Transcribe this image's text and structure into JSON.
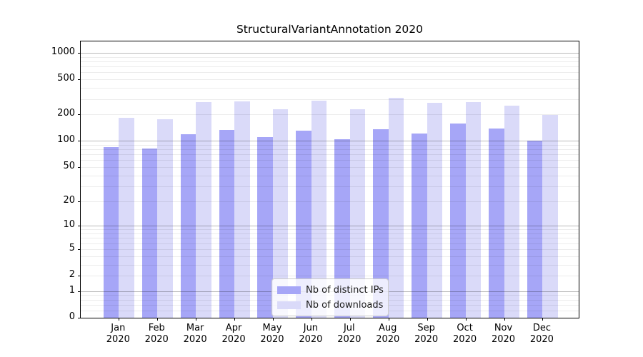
{
  "figure": {
    "title": "StructuralVariantAnnotation 2020"
  },
  "chart_data": {
    "type": "bar",
    "title": "StructuralVariantAnnotation 2020",
    "year_label": "2020",
    "categories": [
      "Jan",
      "Feb",
      "Mar",
      "Apr",
      "May",
      "Jun",
      "Jul",
      "Aug",
      "Sep",
      "Oct",
      "Nov",
      "Dec"
    ],
    "series": [
      {
        "name": "Nb of distinct IPs",
        "color": "#a6a6f7",
        "values": [
          84,
          81,
          119,
          134,
          110,
          130,
          104,
          136,
          122,
          158,
          137,
          101
        ]
      },
      {
        "name": "Nb of downloads",
        "color": "#dadaf9",
        "values": [
          183,
          176,
          274,
          281,
          228,
          287,
          228,
          307,
          271,
          277,
          250,
          197
        ]
      }
    ],
    "y_axis": {
      "scale": "log1p",
      "tick_labels": [
        "0",
        "1",
        "2",
        "5",
        "10",
        "20",
        "50",
        "100",
        "200",
        "500",
        "1000"
      ],
      "ticks": [
        0,
        1,
        2,
        5,
        10,
        20,
        50,
        100,
        200,
        500,
        1000
      ],
      "ylim": [
        0,
        1350
      ]
    },
    "grid": true,
    "legend_position": "lower center"
  },
  "colors": {
    "bar_dark": "#a6a6f7",
    "bar_light": "#dadaf9",
    "major_grid": "rgba(0,0,0,0.27)",
    "minor_grid": "rgba(0,0,0,0.075)",
    "axis": "#000000"
  }
}
